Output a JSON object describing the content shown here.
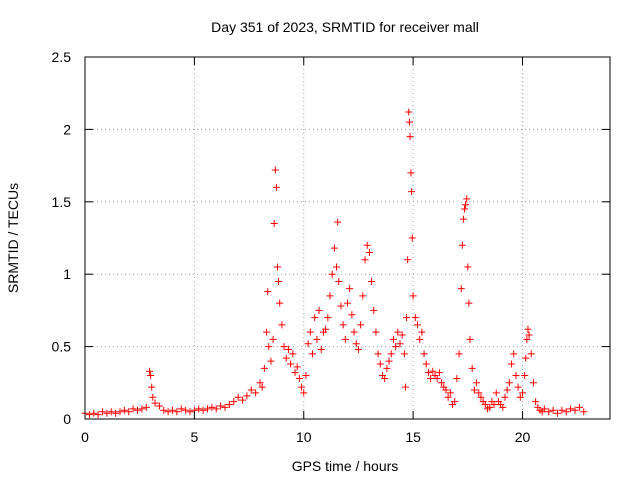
{
  "chart_data": {
    "type": "scatter",
    "title": "Day 351 of 2023, SRMTID for receiver mall",
    "xlabel": "GPS time / hours",
    "ylabel": "SRMTID / TECUs",
    "xlim": [
      0,
      24
    ],
    "ylim": [
      0,
      2.5
    ],
    "x_ticks": [
      0,
      5,
      10,
      15,
      20
    ],
    "x_tick_labels": [
      "0",
      "5",
      "10",
      "15",
      "20"
    ],
    "y_ticks": [
      0,
      0.5,
      1,
      1.5,
      2,
      2.5
    ],
    "y_tick_labels": [
      "0",
      "0.5",
      "1",
      "1.5",
      "2",
      "2.5"
    ],
    "grid": true,
    "marker": "+",
    "series": [
      {
        "name": "SRMTID",
        "color": "#ff0000",
        "points": [
          [
            0.0,
            0.04
          ],
          [
            0.2,
            0.03
          ],
          [
            0.4,
            0.04
          ],
          [
            0.6,
            0.03
          ],
          [
            0.8,
            0.05
          ],
          [
            1.0,
            0.04
          ],
          [
            1.2,
            0.05
          ],
          [
            1.4,
            0.04
          ],
          [
            1.6,
            0.05
          ],
          [
            1.8,
            0.06
          ],
          [
            2.0,
            0.05
          ],
          [
            2.2,
            0.07
          ],
          [
            2.4,
            0.06
          ],
          [
            2.6,
            0.07
          ],
          [
            2.8,
            0.08
          ],
          [
            2.95,
            0.33
          ],
          [
            3.0,
            0.3
          ],
          [
            3.05,
            0.22
          ],
          [
            3.1,
            0.15
          ],
          [
            3.2,
            0.11
          ],
          [
            3.4,
            0.09
          ],
          [
            3.6,
            0.06
          ],
          [
            3.8,
            0.05
          ],
          [
            4.0,
            0.06
          ],
          [
            4.2,
            0.05
          ],
          [
            4.4,
            0.07
          ],
          [
            4.6,
            0.06
          ],
          [
            4.8,
            0.05
          ],
          [
            5.0,
            0.06
          ],
          [
            5.2,
            0.07
          ],
          [
            5.4,
            0.06
          ],
          [
            5.6,
            0.07
          ],
          [
            5.8,
            0.08
          ],
          [
            6.0,
            0.07
          ],
          [
            6.2,
            0.09
          ],
          [
            6.4,
            0.08
          ],
          [
            6.6,
            0.1
          ],
          [
            6.8,
            0.12
          ],
          [
            7.0,
            0.15
          ],
          [
            7.2,
            0.13
          ],
          [
            7.4,
            0.16
          ],
          [
            7.6,
            0.2
          ],
          [
            7.8,
            0.18
          ],
          [
            8.0,
            0.25
          ],
          [
            8.1,
            0.22
          ],
          [
            8.2,
            0.35
          ],
          [
            8.3,
            0.6
          ],
          [
            8.35,
            0.88
          ],
          [
            8.4,
            0.5
          ],
          [
            8.5,
            0.4
          ],
          [
            8.6,
            0.55
          ],
          [
            8.65,
            1.35
          ],
          [
            8.7,
            1.72
          ],
          [
            8.75,
            1.6
          ],
          [
            8.8,
            1.05
          ],
          [
            8.85,
            0.95
          ],
          [
            8.9,
            0.8
          ],
          [
            9.0,
            0.65
          ],
          [
            9.1,
            0.5
          ],
          [
            9.2,
            0.42
          ],
          [
            9.3,
            0.48
          ],
          [
            9.4,
            0.38
          ],
          [
            9.5,
            0.45
          ],
          [
            9.6,
            0.32
          ],
          [
            9.7,
            0.36
          ],
          [
            9.8,
            0.28
          ],
          [
            9.9,
            0.22
          ],
          [
            10.0,
            0.18
          ],
          [
            10.1,
            0.3
          ],
          [
            10.2,
            0.52
          ],
          [
            10.3,
            0.6
          ],
          [
            10.4,
            0.45
          ],
          [
            10.5,
            0.7
          ],
          [
            10.6,
            0.55
          ],
          [
            10.7,
            0.75
          ],
          [
            10.8,
            0.48
          ],
          [
            10.9,
            0.6
          ],
          [
            11.0,
            0.62
          ],
          [
            11.1,
            0.7
          ],
          [
            11.2,
            0.85
          ],
          [
            11.3,
            1.0
          ],
          [
            11.4,
            1.18
          ],
          [
            11.5,
            1.05
          ],
          [
            11.55,
            1.36
          ],
          [
            11.6,
            0.95
          ],
          [
            11.7,
            0.78
          ],
          [
            11.8,
            0.65
          ],
          [
            11.9,
            0.55
          ],
          [
            12.0,
            0.8
          ],
          [
            12.1,
            0.9
          ],
          [
            12.2,
            0.72
          ],
          [
            12.3,
            0.6
          ],
          [
            12.4,
            0.52
          ],
          [
            12.5,
            0.48
          ],
          [
            12.6,
            0.65
          ],
          [
            12.7,
            0.85
          ],
          [
            12.8,
            1.1
          ],
          [
            12.9,
            1.2
          ],
          [
            13.0,
            1.15
          ],
          [
            13.1,
            0.95
          ],
          [
            13.2,
            0.75
          ],
          [
            13.3,
            0.6
          ],
          [
            13.4,
            0.45
          ],
          [
            13.5,
            0.38
          ],
          [
            13.6,
            0.3
          ],
          [
            13.7,
            0.28
          ],
          [
            13.8,
            0.35
          ],
          [
            13.9,
            0.4
          ],
          [
            14.0,
            0.45
          ],
          [
            14.1,
            0.55
          ],
          [
            14.2,
            0.5
          ],
          [
            14.3,
            0.6
          ],
          [
            14.4,
            0.52
          ],
          [
            14.5,
            0.58
          ],
          [
            14.6,
            0.45
          ],
          [
            14.65,
            0.22
          ],
          [
            14.7,
            0.7
          ],
          [
            14.75,
            1.1
          ],
          [
            14.8,
            2.12
          ],
          [
            14.83,
            2.05
          ],
          [
            14.86,
            1.95
          ],
          [
            14.9,
            1.7
          ],
          [
            14.93,
            1.57
          ],
          [
            14.96,
            1.25
          ],
          [
            15.0,
            0.85
          ],
          [
            15.1,
            0.7
          ],
          [
            15.2,
            0.65
          ],
          [
            15.3,
            0.55
          ],
          [
            15.4,
            0.6
          ],
          [
            15.5,
            0.45
          ],
          [
            15.6,
            0.38
          ],
          [
            15.7,
            0.32
          ],
          [
            15.8,
            0.28
          ],
          [
            15.9,
            0.33
          ],
          [
            16.0,
            0.3
          ],
          [
            16.1,
            0.28
          ],
          [
            16.2,
            0.32
          ],
          [
            16.3,
            0.25
          ],
          [
            16.4,
            0.22
          ],
          [
            16.5,
            0.2
          ],
          [
            16.6,
            0.15
          ],
          [
            16.7,
            0.18
          ],
          [
            16.8,
            0.1
          ],
          [
            16.9,
            0.12
          ],
          [
            17.0,
            0.28
          ],
          [
            17.1,
            0.45
          ],
          [
            17.2,
            0.9
          ],
          [
            17.25,
            1.2
          ],
          [
            17.3,
            1.38
          ],
          [
            17.35,
            1.45
          ],
          [
            17.4,
            1.48
          ],
          [
            17.45,
            1.52
          ],
          [
            17.5,
            1.05
          ],
          [
            17.55,
            0.8
          ],
          [
            17.6,
            0.55
          ],
          [
            17.7,
            0.35
          ],
          [
            17.8,
            0.2
          ],
          [
            17.9,
            0.25
          ],
          [
            18.0,
            0.18
          ],
          [
            18.1,
            0.15
          ],
          [
            18.2,
            0.12
          ],
          [
            18.3,
            0.1
          ],
          [
            18.4,
            0.07
          ],
          [
            18.5,
            0.08
          ],
          [
            18.6,
            0.12
          ],
          [
            18.7,
            0.1
          ],
          [
            18.8,
            0.18
          ],
          [
            18.9,
            0.12
          ],
          [
            19.0,
            0.1
          ],
          [
            19.1,
            0.08
          ],
          [
            19.2,
            0.15
          ],
          [
            19.3,
            0.2
          ],
          [
            19.4,
            0.25
          ],
          [
            19.5,
            0.38
          ],
          [
            19.6,
            0.45
          ],
          [
            19.7,
            0.3
          ],
          [
            19.8,
            0.22
          ],
          [
            19.9,
            0.15
          ],
          [
            20.0,
            0.18
          ],
          [
            20.1,
            0.3
          ],
          [
            20.15,
            0.42
          ],
          [
            20.2,
            0.55
          ],
          [
            20.25,
            0.62
          ],
          [
            20.3,
            0.58
          ],
          [
            20.4,
            0.45
          ],
          [
            20.5,
            0.25
          ],
          [
            20.6,
            0.12
          ],
          [
            20.7,
            0.08
          ],
          [
            20.8,
            0.06
          ],
          [
            20.9,
            0.05
          ],
          [
            21.0,
            0.07
          ],
          [
            21.2,
            0.05
          ],
          [
            21.4,
            0.06
          ],
          [
            21.6,
            0.04
          ],
          [
            21.8,
            0.06
          ],
          [
            22.0,
            0.05
          ],
          [
            22.2,
            0.07
          ],
          [
            22.4,
            0.06
          ],
          [
            22.6,
            0.08
          ],
          [
            22.8,
            0.05
          ]
        ]
      }
    ]
  }
}
